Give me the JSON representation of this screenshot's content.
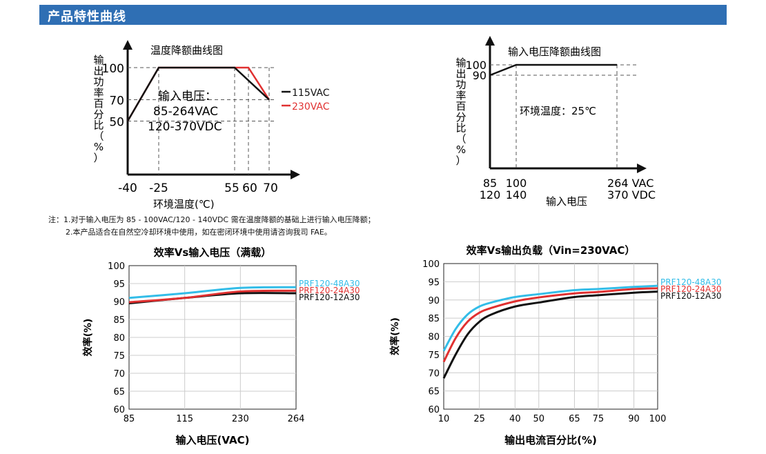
{
  "header": {
    "title": "产品特性曲线"
  },
  "notes": [
    "注：1.对于输入电压为 85 - 100VAC/120 - 140VDC 需在温度降额的基础上进行输入电压降额；",
    "2.本产品适合在自然空冷却环境中使用，如在密闭环境中使用请咨询我司 FAE。"
  ],
  "colors": {
    "header_bg": "#2f6fb4",
    "black_series": "#111111",
    "red_series": "#e03030",
    "cyan_series": "#33bde8"
  },
  "chart_data": [
    {
      "id": "temp-derating",
      "type": "line",
      "title": "温度降额曲线图",
      "ylabel": "输出功率百分比（%）",
      "xlabel": "环境温度(℃)",
      "x_ticks": [
        -40,
        -25,
        55,
        60,
        70
      ],
      "x_tick_labels": [
        "-40",
        "-25",
        "55",
        "60",
        "70"
      ],
      "y_ticks": [
        50,
        70,
        100
      ],
      "y_tick_labels": [
        "50",
        "70",
        "100"
      ],
      "xlim": [
        -40,
        84
      ],
      "ylim": [
        0,
        115
      ],
      "annotation": [
        "输入电压：",
        "85-264VAC",
        "120-370VDC"
      ],
      "series": [
        {
          "name": "115VAC",
          "color": "#111111",
          "x": [
            -40,
            -25,
            55,
            70
          ],
          "y": [
            50,
            100,
            100,
            70
          ]
        },
        {
          "name": "230VAC",
          "color": "#e03030",
          "x": [
            -40,
            -25,
            60,
            70
          ],
          "y": [
            50,
            100,
            100,
            70
          ]
        }
      ]
    },
    {
      "id": "input-derating",
      "type": "line",
      "title": "输入电压降额曲线图",
      "ylabel": "输出功率百分比（%）",
      "xlabel": "输入电压",
      "x_ticks": [
        85,
        100,
        264
      ],
      "x_tick_labels": [
        [
          "85",
          "120"
        ],
        [
          "100",
          "140"
        ],
        [
          "264 VAC",
          "370 VDC"
        ]
      ],
      "y_ticks": [
        90,
        100
      ],
      "y_tick_labels": [
        "90",
        "100"
      ],
      "xlim": [
        85,
        290
      ],
      "ylim": [
        0,
        107
      ],
      "annotation": [
        "环境温度：25℃"
      ],
      "series": [
        {
          "name": "",
          "color": "#111111",
          "x": [
            85,
            100,
            264
          ],
          "y": [
            90,
            100,
            100
          ]
        }
      ]
    },
    {
      "id": "eff-vs-vin",
      "type": "line",
      "title": "效率Vs输入电压（满载）",
      "ylabel": "效率(%)",
      "xlabel": "输入电压(VAC)",
      "categories": [
        "85",
        "115",
        "230",
        "264"
      ],
      "y_ticks": [
        60,
        65,
        70,
        75,
        80,
        85,
        90,
        95,
        100
      ],
      "ylim": [
        60,
        100
      ],
      "grid": true,
      "series": [
        {
          "name": "PRF120-48A30",
          "color": "#33bde8",
          "values": [
            91.0,
            92.3,
            93.8,
            94.0
          ]
        },
        {
          "name": "PRF120-24A30",
          "color": "#e03030",
          "values": [
            89.8,
            91.0,
            92.8,
            93.0
          ]
        },
        {
          "name": "PRF120-12A30",
          "color": "#111111",
          "values": [
            89.5,
            91.0,
            92.3,
            92.3
          ]
        }
      ]
    },
    {
      "id": "eff-vs-load",
      "type": "line",
      "title": "效率Vs输出负载（Vin=230VAC）",
      "ylabel": "效率(%)",
      "xlabel": "输出电流百分比(%)",
      "x": [
        10,
        25,
        40,
        50,
        65,
        75,
        90,
        100
      ],
      "x_ticks": [
        10,
        25,
        40,
        50,
        65,
        75,
        90,
        100
      ],
      "y_ticks": [
        60,
        65,
        70,
        75,
        80,
        85,
        90,
        95,
        100
      ],
      "ylim": [
        60,
        100
      ],
      "grid": true,
      "series": [
        {
          "name": "PRF120-48A30",
          "color": "#33bde8",
          "x": [
            10,
            15,
            20,
            25,
            30,
            40,
            50,
            65,
            75,
            90,
            100
          ],
          "values": [
            76.0,
            82.0,
            86.0,
            88.2,
            89.3,
            90.8,
            91.6,
            92.7,
            93.0,
            93.6,
            93.9
          ]
        },
        {
          "name": "PRF120-24A30",
          "color": "#e03030",
          "x": [
            10,
            15,
            20,
            25,
            30,
            40,
            50,
            65,
            75,
            90,
            100
          ],
          "values": [
            73.0,
            79.5,
            84.0,
            86.5,
            87.8,
            89.6,
            90.7,
            91.8,
            92.2,
            93.0,
            93.2
          ]
        },
        {
          "name": "PRF120-12A30",
          "color": "#111111",
          "x": [
            10,
            15,
            20,
            25,
            30,
            40,
            50,
            65,
            75,
            90,
            100
          ],
          "values": [
            68.5,
            75.0,
            80.5,
            84.0,
            86.0,
            88.2,
            89.3,
            90.8,
            91.3,
            92.0,
            92.3
          ]
        }
      ]
    }
  ]
}
